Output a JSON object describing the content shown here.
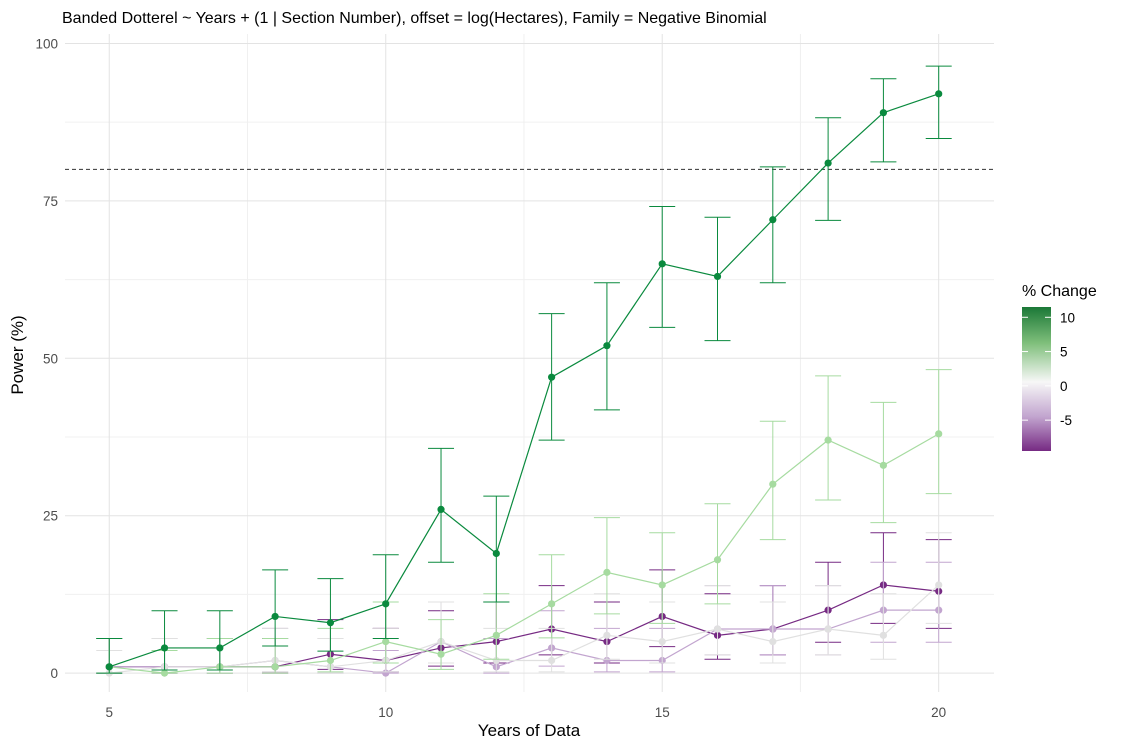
{
  "chart_data": {
    "type": "line",
    "title": "Banded Dotterel ~ Years + (1 | Section Number), offset = log(Hectares), Family = Negative Binomial",
    "xlabel": "Years of Data",
    "ylabel": "Power (%)",
    "xlim": [
      4.2,
      21.0
    ],
    "ylim": [
      -3.0,
      101.5
    ],
    "x_ticks": [
      5,
      10,
      15,
      20
    ],
    "x_tick_labels": [
      "5",
      "10",
      "15",
      "20"
    ],
    "y_ticks": [
      0,
      25,
      50,
      75,
      100
    ],
    "y_tick_labels": [
      "0",
      "25",
      "50",
      "75",
      "100"
    ],
    "grid": true,
    "reference_line": {
      "y": 80,
      "style": "dashed"
    },
    "legend": {
      "title": "% Change",
      "position": "right",
      "type": "colorbar",
      "range": [
        -9.5,
        11.5
      ],
      "ticks": [
        10,
        5,
        0,
        -5
      ],
      "tick_labels": [
        "10",
        "5",
        "0",
        "-5"
      ],
      "colors": {
        "low": "#762a83",
        "mid": "#f7f7f7",
        "high": "#1b7837"
      }
    },
    "x": [
      5,
      6,
      7,
      8,
      9,
      10,
      11,
      12,
      13,
      14,
      15,
      16,
      17,
      18,
      19,
      20
    ],
    "series": [
      {
        "change": 10,
        "color": "#0a8a3e",
        "values": [
          1,
          4,
          4,
          9,
          8,
          11,
          26,
          19,
          47,
          52,
          65,
          63,
          72,
          81,
          89,
          92
        ],
        "lower": [
          0,
          0.5,
          0.5,
          4.3,
          3.5,
          5.5,
          17.6,
          11.3,
          37,
          41.8,
          54.9,
          52.8,
          62,
          71.9,
          81.2,
          84.9
        ],
        "upper": [
          5.5,
          9.9,
          9.9,
          16.4,
          15,
          18.8,
          35.7,
          28.1,
          57.1,
          62,
          74.1,
          72.4,
          80.4,
          88.2,
          94.4,
          96.4
        ]
      },
      {
        "change": 5,
        "color": "#a6dba0",
        "values": [
          1,
          0,
          1,
          1,
          2,
          5,
          3,
          6,
          11,
          16,
          14,
          18,
          30,
          37,
          33,
          38
        ],
        "lower": [
          0,
          0,
          0,
          0,
          0.2,
          1.6,
          0.6,
          2.2,
          5.6,
          9.4,
          7.9,
          11,
          21.2,
          27.5,
          23.9,
          28.5
        ],
        "upper": [
          5.5,
          3.6,
          5.5,
          5.5,
          7.1,
          11.3,
          8.5,
          12.6,
          18.8,
          24.7,
          22.3,
          26.9,
          40,
          47.2,
          43,
          48.2
        ]
      },
      {
        "change": 0,
        "color": "#e0e0e0",
        "values": [
          0,
          1,
          1,
          2,
          1,
          2,
          5,
          2,
          2,
          6,
          5,
          7,
          5,
          7,
          6,
          14
        ],
        "lower": [
          0,
          0,
          0,
          0.2,
          0,
          0.2,
          1.6,
          0.2,
          0.2,
          2.2,
          1.6,
          2.9,
          1.6,
          2.9,
          2.2,
          7.9
        ],
        "upper": [
          3.6,
          5.5,
          5.5,
          7.1,
          5.5,
          7.1,
          11.3,
          7.1,
          7.1,
          12.6,
          11.3,
          13.9,
          11.3,
          13.9,
          12.6,
          22.3
        ]
      },
      {
        "change": -5,
        "color": "#c2a5cf",
        "values": [
          1,
          1,
          1,
          2,
          1,
          0,
          5,
          1,
          4,
          2,
          2,
          7,
          7,
          7,
          10,
          10
        ],
        "lower": [
          0,
          0,
          0,
          0.2,
          0,
          0,
          1.6,
          0,
          1.1,
          0.2,
          0.2,
          2.9,
          2.9,
          2.9,
          4.9,
          4.9
        ],
        "upper": [
          5.5,
          5.5,
          5.5,
          7.1,
          5.5,
          3.6,
          11.3,
          5.5,
          9.9,
          7.1,
          7.1,
          13.9,
          13.9,
          13.9,
          17.6,
          17.6
        ]
      },
      {
        "change": -10,
        "color": "#762a83",
        "values": [
          1,
          1,
          1,
          1,
          3,
          2,
          4,
          5,
          7,
          5,
          9,
          6,
          7,
          10,
          14,
          13
        ],
        "lower": [
          0,
          0,
          0,
          0,
          0.6,
          0.2,
          1.1,
          1.6,
          2.9,
          1.6,
          4.2,
          2.2,
          2.9,
          4.9,
          7.9,
          7.1
        ],
        "upper": [
          5.5,
          5.5,
          5.5,
          5.5,
          8.5,
          7.1,
          9.9,
          11.3,
          13.9,
          11.3,
          16.4,
          12.6,
          13.9,
          17.6,
          22.3,
          21.2
        ]
      }
    ]
  }
}
